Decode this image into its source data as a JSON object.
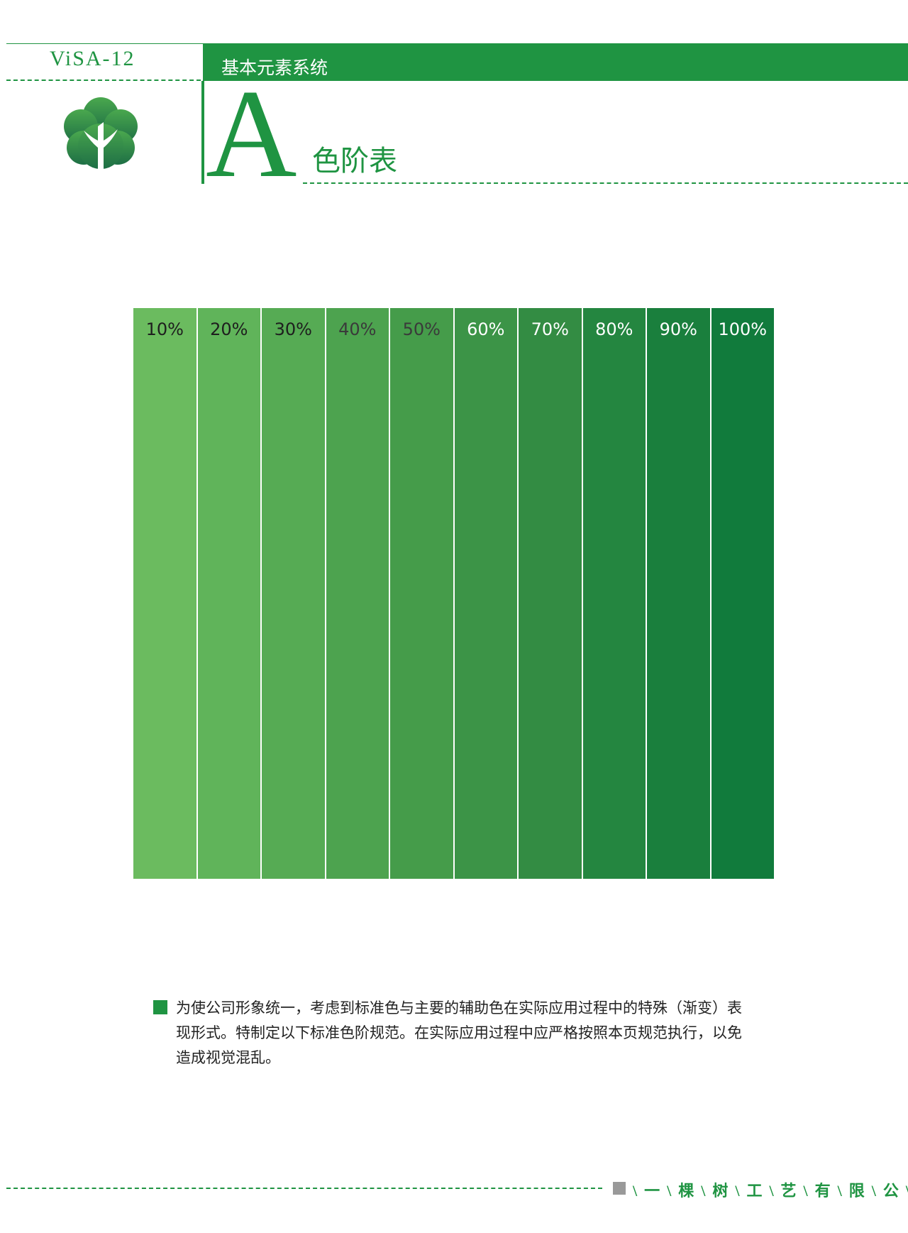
{
  "header": {
    "code": "ViSA-12",
    "section": "基本元素系统",
    "letter": "A",
    "title": "色阶表"
  },
  "swatches": [
    {
      "label": "10%",
      "color": "#6bbb5f",
      "text_color": "#1e1e1e"
    },
    {
      "label": "20%",
      "color": "#60b45a",
      "text_color": "#1e1e1e"
    },
    {
      "label": "30%",
      "color": "#56ab54",
      "text_color": "#1e1e1e"
    },
    {
      "label": "40%",
      "color": "#4da34f",
      "text_color": "#3a3a3a"
    },
    {
      "label": "50%",
      "color": "#459c4a",
      "text_color": "#3a3a3a"
    },
    {
      "label": "60%",
      "color": "#3c9447",
      "text_color": "#ffffff"
    },
    {
      "label": "70%",
      "color": "#338c43",
      "text_color": "#ffffff"
    },
    {
      "label": "80%",
      "color": "#248640",
      "text_color": "#ffffff"
    },
    {
      "label": "90%",
      "color": "#1a7f3d",
      "text_color": "#ffffff"
    },
    {
      "label": "100%",
      "color": "#117b3c",
      "text_color": "#ffffff"
    }
  ],
  "note": {
    "lines": [
      "为使公司形象统一，考虑到标准色与主要的辅助色在实际应用过程中的特殊（渐变）表",
      "现形式。特制定以下标准色阶规范。在实际应用过程中应严格按照本页规范执行，以免",
      "造成视觉混乱。"
    ]
  },
  "footer": {
    "company": "\\一\\棵\\树\\工\\艺\\有\\限\\公\\司"
  }
}
